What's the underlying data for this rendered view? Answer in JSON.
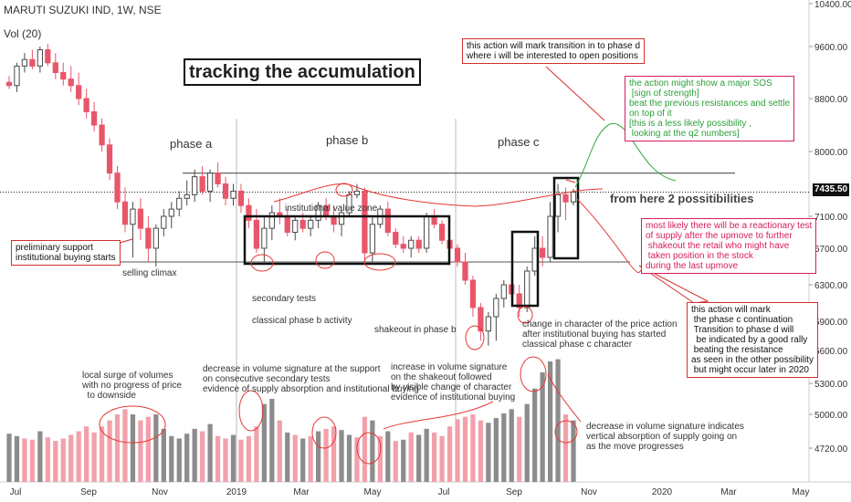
{
  "header": {
    "symbol": "MARUTI SUZUKI IND, 1W, NSE",
    "indicator": "Vol (20)"
  },
  "title_box": "tracking the accumulation",
  "phases": [
    "phase a",
    "phase b",
    "phase c"
  ],
  "annotations": {
    "possibilities": "from here 2 possitibilities",
    "prelim": "preliminary support\ninstitutional buying starts",
    "selling_climax": "selling climax",
    "secondary_tests": "secondary tests",
    "classical_b": "classical phase b activity",
    "inst_value_zone": "institutional value zone",
    "shakeout": "shakeout in phase b",
    "change_char": "change in character of the price action\nafter institutional buying has started\nclassical phase c character",
    "vol_local": "local surge of volumes\nwith no progress of price\n  to downside",
    "vol_decrease": "decrease in volume signature at the support\non consecutive secondary tests\nevidence of supply absorption and institutional buying",
    "vol_increase": "increase in volume signature\non the shakeout followed\nby visible change of character\nevidence of institutional buying",
    "vol_vertical": "decrease in volume signature indicates\nvertical absorption of supply going on\nas the move progresses"
  },
  "callouts": {
    "phase_d": "this action will mark transition in to phase d\nwhere i will be interested to open positions",
    "sos": "the action might show a major SOS\n [sign of strength]\nbeat the previous resistances and settle\non top of it\n[this is a less likely possibility ,\n looking at the q2 numbers]",
    "reaction": "most likely there will be a reactionary test\nof supply after the upmove to further\n shakeout the retail who might have\n taken position in the stock\nduring the last upmove",
    "continuation": "this action will mark\n the phase c continuation\n Transition to phase d will\n  be indicated by a good rally\n beating the resistance\nas seen in the other possibility\n but might occur later in 2020"
  },
  "price_tag": "7435.50",
  "colors": {
    "up": "#4a4a4a",
    "down": "#e8566a",
    "vol_up": "#8c8c8c",
    "vol_down": "#f2a1ab",
    "resistance": "#555555",
    "curve": "#e53935",
    "bull_path": "#2eaa3a",
    "bear_path": "#e53935"
  },
  "chart_data": {
    "type": "candlestick",
    "symbol": "MARUTI SUZUKI IND",
    "interval": "1W",
    "y_ticks": [
      "10400.00",
      "9600.00",
      "8800.00",
      "8000.00",
      "7100.00",
      "6700.00",
      "6300.00",
      "5900.00",
      "5600.00",
      "5300.00",
      "5000.00",
      "4720.00"
    ],
    "x_ticks": [
      "Jul",
      "Sep",
      "Nov",
      "2019",
      "Mar",
      "May",
      "Jul",
      "Sep",
      "Nov",
      "2020",
      "Mar",
      "May"
    ],
    "last_price": 7435.5,
    "resistance_level": 7700,
    "support_level": 6550,
    "candles": [
      [
        9050,
        9150,
        8950,
        9000
      ],
      [
        9000,
        9350,
        8900,
        9300
      ],
      [
        9300,
        9500,
        9200,
        9400
      ],
      [
        9400,
        9550,
        9250,
        9300
      ],
      [
        9300,
        9600,
        9200,
        9550
      ],
      [
        9550,
        9650,
        9300,
        9350
      ],
      [
        9350,
        9500,
        9100,
        9200
      ],
      [
        9200,
        9350,
        9000,
        9100
      ],
      [
        9100,
        9300,
        8900,
        9000
      ],
      [
        9000,
        9200,
        8700,
        8800
      ],
      [
        8800,
        8950,
        8500,
        8600
      ],
      [
        8600,
        8750,
        8300,
        8400
      ],
      [
        8400,
        8500,
        8000,
        8100
      ],
      [
        8100,
        8200,
        7600,
        7700
      ],
      [
        7700,
        7800,
        7200,
        7300
      ],
      [
        7300,
        7500,
        6900,
        7000
      ],
      [
        7000,
        7300,
        6600,
        7200
      ],
      [
        7200,
        7350,
        6800,
        6950
      ],
      [
        6950,
        7100,
        6550,
        6700
      ],
      [
        6700,
        7000,
        6500,
        6950
      ],
      [
        6950,
        7200,
        6850,
        7100
      ],
      [
        7100,
        7300,
        6950,
        7200
      ],
      [
        7200,
        7450,
        7100,
        7350
      ],
      [
        7350,
        7600,
        7250,
        7400
      ],
      [
        7400,
        7750,
        7300,
        7650
      ],
      [
        7650,
        7800,
        7400,
        7450
      ],
      [
        7450,
        7750,
        7300,
        7700
      ],
      [
        7700,
        7850,
        7500,
        7550
      ],
      [
        7550,
        7650,
        7250,
        7350
      ],
      [
        7350,
        7550,
        7250,
        7450
      ],
      [
        7450,
        7550,
        7150,
        7250
      ],
      [
        7250,
        7350,
        6950,
        7050
      ],
      [
        7050,
        7200,
        6650,
        6700
      ],
      [
        6700,
        7100,
        6550,
        6950
      ],
      [
        6950,
        7250,
        6800,
        7150
      ],
      [
        7150,
        7350,
        7000,
        7100
      ],
      [
        7100,
        7200,
        6850,
        6900
      ],
      [
        6900,
        7100,
        6800,
        7050
      ],
      [
        7050,
        7150,
        6900,
        6950
      ],
      [
        6950,
        7100,
        6850,
        7050
      ],
      [
        7050,
        7300,
        6950,
        7250
      ],
      [
        7250,
        7350,
        7050,
        7100
      ],
      [
        7100,
        7250,
        6900,
        7000
      ],
      [
        7000,
        7200,
        6850,
        7150
      ],
      [
        7150,
        7450,
        7100,
        7400
      ],
      [
        7400,
        7550,
        7350,
        7450
      ],
      [
        7450,
        7500,
        6550,
        6650
      ],
      [
        6650,
        7100,
        6550,
        7000
      ],
      [
        7000,
        7250,
        6950,
        7200
      ],
      [
        7200,
        7300,
        6850,
        6900
      ],
      [
        6900,
        6950,
        6700,
        6750
      ],
      [
        6750,
        6850,
        6650,
        6700
      ],
      [
        6700,
        6850,
        6600,
        6800
      ],
      [
        6800,
        6850,
        6650,
        6700
      ],
      [
        6700,
        7150,
        6650,
        7100
      ],
      [
        7100,
        7200,
        6950,
        7000
      ],
      [
        7000,
        7050,
        6750,
        6800
      ],
      [
        6800,
        6850,
        6600,
        6700
      ],
      [
        6700,
        6750,
        6500,
        6550
      ],
      [
        6550,
        6650,
        6300,
        6350
      ],
      [
        6350,
        6400,
        5950,
        6050
      ],
      [
        6050,
        6100,
        5700,
        5800
      ],
      [
        5800,
        6000,
        5650,
        5950
      ],
      [
        5950,
        6200,
        5700,
        6150
      ],
      [
        6150,
        6350,
        6050,
        6300
      ],
      [
        6300,
        6450,
        6150,
        6200
      ],
      [
        6200,
        6300,
        5950,
        6050
      ],
      [
        6050,
        6500,
        6000,
        6450
      ],
      [
        6450,
        6850,
        6400,
        6700
      ],
      [
        6700,
        6850,
        6500,
        6600
      ],
      [
        6600,
        7300,
        6550,
        7100
      ],
      [
        7100,
        7550,
        6900,
        7400
      ],
      [
        7400,
        7500,
        7050,
        7300
      ],
      [
        7300,
        7480,
        7250,
        7435
      ]
    ],
    "volumes": [
      [
        4840,
        1
      ],
      [
        4820,
        1
      ],
      [
        4800,
        0
      ],
      [
        4790,
        0
      ],
      [
        4860,
        1
      ],
      [
        4810,
        0
      ],
      [
        4780,
        0
      ],
      [
        4800,
        0
      ],
      [
        4830,
        0
      ],
      [
        4860,
        0
      ],
      [
        4900,
        0
      ],
      [
        4850,
        0
      ],
      [
        4900,
        0
      ],
      [
        4950,
        0
      ],
      [
        5000,
        0
      ],
      [
        5050,
        0
      ],
      [
        5000,
        1
      ],
      [
        4950,
        0
      ],
      [
        4980,
        0
      ],
      [
        5000,
        1
      ],
      [
        4880,
        1
      ],
      [
        4820,
        1
      ],
      [
        4800,
        1
      ],
      [
        4840,
        1
      ],
      [
        4880,
        1
      ],
      [
        4860,
        0
      ],
      [
        4920,
        1
      ],
      [
        4820,
        0
      ],
      [
        4800,
        0
      ],
      [
        4830,
        1
      ],
      [
        4790,
        0
      ],
      [
        4820,
        0
      ],
      [
        4900,
        0
      ],
      [
        5100,
        1
      ],
      [
        5150,
        1
      ],
      [
        4950,
        0
      ],
      [
        4850,
        1
      ],
      [
        4830,
        0
      ],
      [
        4800,
        1
      ],
      [
        4820,
        0
      ],
      [
        4860,
        1
      ],
      [
        4880,
        0
      ],
      [
        4900,
        0
      ],
      [
        4870,
        1
      ],
      [
        4830,
        1
      ],
      [
        4810,
        0
      ],
      [
        4980,
        0
      ],
      [
        4950,
        1
      ],
      [
        4820,
        0
      ],
      [
        4860,
        1
      ],
      [
        4780,
        0
      ],
      [
        4790,
        1
      ],
      [
        4850,
        0
      ],
      [
        4830,
        1
      ],
      [
        4880,
        1
      ],
      [
        4850,
        0
      ],
      [
        4820,
        0
      ],
      [
        4900,
        0
      ],
      [
        4960,
        0
      ],
      [
        4980,
        0
      ],
      [
        5000,
        0
      ],
      [
        4950,
        0
      ],
      [
        4930,
        1
      ],
      [
        4970,
        1
      ],
      [
        5010,
        1
      ],
      [
        5050,
        1
      ],
      [
        4980,
        0
      ],
      [
        5100,
        1
      ],
      [
        5250,
        1
      ],
      [
        5400,
        1
      ],
      [
        5500,
        1
      ],
      [
        5520,
        1
      ],
      [
        5000,
        0
      ],
      [
        4950,
        1
      ]
    ]
  }
}
